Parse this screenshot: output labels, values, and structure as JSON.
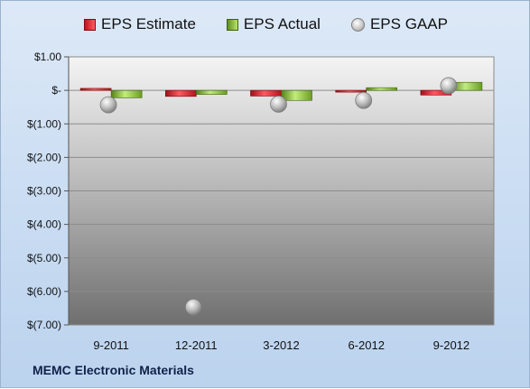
{
  "legend": {
    "estimate": "EPS Estimate",
    "actual": "EPS Actual",
    "gaap": "EPS GAAP"
  },
  "company": "MEMC Electronic Materials",
  "colors": {
    "estimate": "#d11a24",
    "actual": "#8cc63f",
    "gaap": "#b3b3b3"
  },
  "chart_data": {
    "type": "bar",
    "categories": [
      "9-2011",
      "12-2011",
      "3-2012",
      "6-2012",
      "9-2012"
    ],
    "series": [
      {
        "name": "EPS Estimate",
        "values": [
          0.06,
          -0.18,
          -0.17,
          -0.03,
          -0.14
        ]
      },
      {
        "name": "EPS Actual",
        "values": [
          -0.22,
          -0.12,
          -0.3,
          0.08,
          0.24
        ]
      },
      {
        "name": "EPS GAAP",
        "type": "scatter",
        "values": [
          -0.43,
          -6.47,
          -0.41,
          -0.3,
          0.14
        ]
      }
    ],
    "ylim": [
      -7,
      1
    ],
    "yticks": [
      1,
      0,
      -1,
      -2,
      -3,
      -4,
      -5,
      -6,
      -7
    ],
    "ytick_labels": [
      "$1.00",
      "$-",
      "$(1.00)",
      "$(2.00)",
      "$(3.00)",
      "$(4.00)",
      "$(5.00)",
      "$(6.00)",
      "$(7.00)"
    ],
    "grid": true,
    "legend_position": "top"
  }
}
